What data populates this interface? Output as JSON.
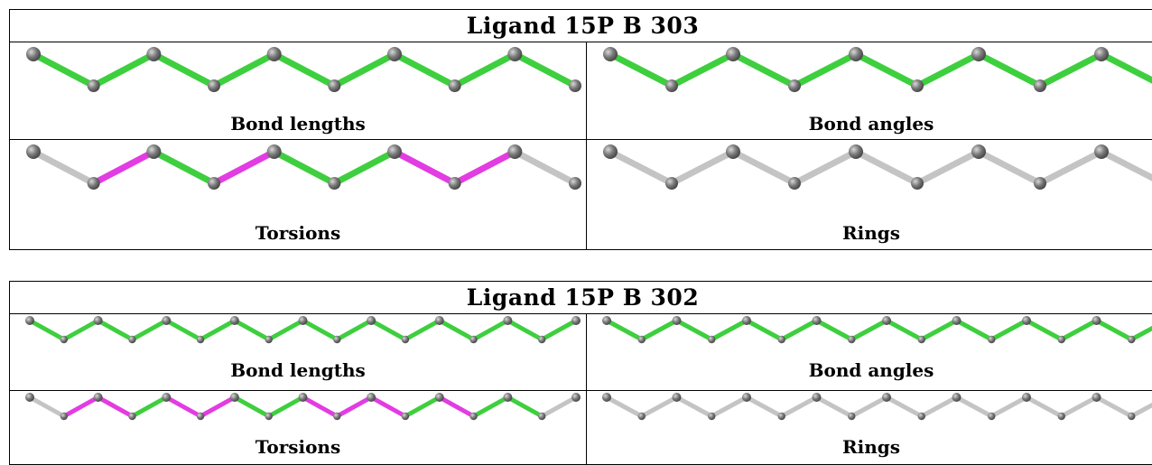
{
  "tables": [
    {
      "title": "Ligand 15P B 303",
      "panels": [
        {
          "label": "Bond lengths",
          "bond_colors": [
            "green",
            "green",
            "green",
            "green",
            "green",
            "green",
            "green",
            "green",
            "green"
          ]
        },
        {
          "label": "Bond angles",
          "bond_colors": [
            "green",
            "green",
            "green",
            "green",
            "green",
            "green",
            "green",
            "green",
            "green"
          ]
        },
        {
          "label": "Torsions",
          "bond_colors": [
            "gray",
            "magenta",
            "green",
            "magenta",
            "green",
            "green",
            "magenta",
            "magenta",
            "gray"
          ]
        },
        {
          "label": "Rings",
          "bond_colors": [
            "gray",
            "gray",
            "gray",
            "gray",
            "gray",
            "gray",
            "gray",
            "gray",
            "gray"
          ]
        }
      ]
    },
    {
      "title": "Ligand 15P B 302",
      "panels": [
        {
          "label": "Bond lengths",
          "bond_colors": [
            "green",
            "green",
            "green",
            "green",
            "green",
            "green",
            "green",
            "green",
            "green",
            "green",
            "green",
            "green",
            "green",
            "green",
            "green",
            "green"
          ]
        },
        {
          "label": "Bond angles",
          "bond_colors": [
            "green",
            "green",
            "green",
            "green",
            "green",
            "green",
            "green",
            "green",
            "green",
            "green",
            "green",
            "green",
            "green",
            "green",
            "green",
            "green"
          ]
        },
        {
          "label": "Torsions",
          "bond_colors": [
            "gray",
            "magenta",
            "magenta",
            "green",
            "magenta",
            "magenta",
            "green",
            "green",
            "magenta",
            "magenta",
            "magenta",
            "green",
            "magenta",
            "green",
            "green",
            "gray"
          ]
        },
        {
          "label": "Rings",
          "bond_colors": [
            "gray",
            "gray",
            "gray",
            "gray",
            "gray",
            "gray",
            "gray",
            "gray",
            "gray",
            "gray",
            "gray",
            "gray",
            "gray",
            "gray",
            "gray",
            "gray"
          ]
        }
      ]
    }
  ],
  "colors": {
    "green": "#3ecf3e",
    "magenta": "#e23ce2",
    "gray": "#c4c4c4",
    "atom": "#7a7a7a",
    "border": "#000000"
  }
}
